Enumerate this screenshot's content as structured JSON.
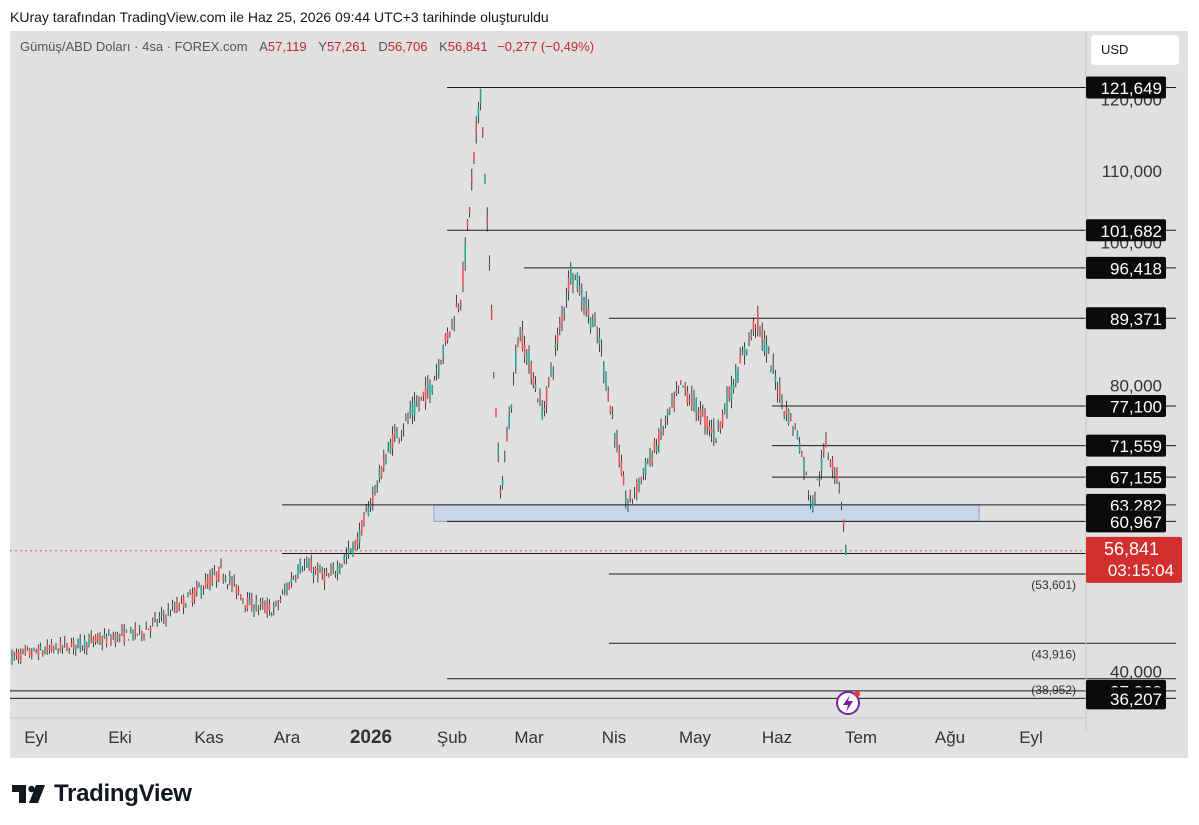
{
  "header": {
    "caption": "KUray tarafından TradingView.com ile Haz 25, 2026 09:44 UTC+3 tarihinde oluşturuldu"
  },
  "symbol": {
    "name": "Gümüş/ABD Doları · 4sa · FOREX.com",
    "open_label": "A",
    "open": "57,119",
    "high_label": "Y",
    "high": "57,261",
    "low_label": "D",
    "low": "56,706",
    "close_label": "K",
    "close": "56,841",
    "change": "−0,277 (−0,49%)"
  },
  "currency": "USD",
  "brand": {
    "name": "TradingView",
    "logo_icon": "tradingview-logo-icon"
  },
  "colors": {
    "background": "#e0e0e0",
    "up": "#26a69a",
    "down": "#ef5350",
    "price_tag": "#d32f2f",
    "level_tag": "#0b0b0b",
    "zone_fill": "#c9d6e8",
    "zone_stroke": "#8aa0c0"
  },
  "chart_data": {
    "type": "candlestick",
    "title": "Gümüş/ABD Doları · 4sa · FOREX.com",
    "y_axis_ticks": [
      "120,000",
      "110,000",
      "100,000",
      "80,000",
      "40,000"
    ],
    "x_axis_ticks": [
      "Eyl",
      "Eki",
      "Kas",
      "Ara",
      "2026",
      "Şub",
      "Mar",
      "Nis",
      "May",
      "Haz",
      "Tem",
      "Ağu",
      "Eyl"
    ],
    "x_axis_bold": "2026",
    "current_price": {
      "value": 56.841,
      "label": "56,841",
      "countdown": "03:15:04"
    },
    "horizontal_levels": [
      {
        "value": 121.649,
        "label": "121,649",
        "start": "Şub"
      },
      {
        "value": 101.682,
        "label": "101,682",
        "start": "Şub"
      },
      {
        "value": 96.418,
        "label": "96,418",
        "start": "Mar"
      },
      {
        "value": 89.371,
        "label": "89,371",
        "start": "Nis"
      },
      {
        "value": 77.1,
        "label": "77,100",
        "start": "Haz"
      },
      {
        "value": 71.559,
        "label": "71,559",
        "start": "Haz"
      },
      {
        "value": 67.155,
        "label": "67,155",
        "start": "Haz"
      },
      {
        "value": 63.282,
        "label": "63,282",
        "start": "Ara"
      },
      {
        "value": 60.967,
        "label": "60,967",
        "start": "Şub"
      },
      {
        "value": 56.47,
        "label": "56,470",
        "start": "Ara"
      },
      {
        "value": 53.601,
        "label": "(53,601)",
        "start": "Nis",
        "style": "projection"
      },
      {
        "value": 43.916,
        "label": "(43,916)",
        "start": "Nis",
        "style": "projection"
      },
      {
        "value": 38.952,
        "label": "(38,952)",
        "start": "Şub",
        "style": "projection"
      },
      {
        "value": 37.268,
        "label": "37,268",
        "start": "Eyl"
      },
      {
        "value": 36.207,
        "label": "36,207",
        "start": "Eyl"
      }
    ],
    "zone": {
      "from": 60.967,
      "to": 63.282,
      "start": "Şub",
      "end": "Ağu"
    },
    "price_path": [
      [
        "Eyl",
        42.0
      ],
      [
        "Eki",
        45.5
      ],
      [
        "Eki",
        50.0
      ],
      [
        "Kas",
        54.0
      ],
      [
        "Kas",
        49.5
      ],
      [
        "Kas",
        48.5
      ],
      [
        "Ara",
        55.0
      ],
      [
        "Ara",
        53.0
      ],
      [
        "Ara",
        58.0
      ],
      [
        "2026",
        72.0
      ],
      [
        "2026",
        80.0
      ],
      [
        "Şub",
        93.0
      ],
      [
        "Şub",
        121.649
      ],
      [
        "Şub",
        64.0
      ],
      [
        "Şub",
        88.0
      ],
      [
        "Mar",
        76.0
      ],
      [
        "Mar",
        96.418
      ],
      [
        "Mar",
        86.0
      ],
      [
        "Nis",
        63.0
      ],
      [
        "Nis",
        71.0
      ],
      [
        "Nis",
        80.0
      ],
      [
        "May",
        73.0
      ],
      [
        "May",
        89.371
      ],
      [
        "Haz",
        77.1
      ],
      [
        "Haz",
        73.0
      ],
      [
        "Haz",
        63.0
      ],
      [
        "Haz",
        71.559
      ],
      [
        "Haz",
        66.0
      ],
      [
        "Haz",
        56.841
      ]
    ]
  }
}
